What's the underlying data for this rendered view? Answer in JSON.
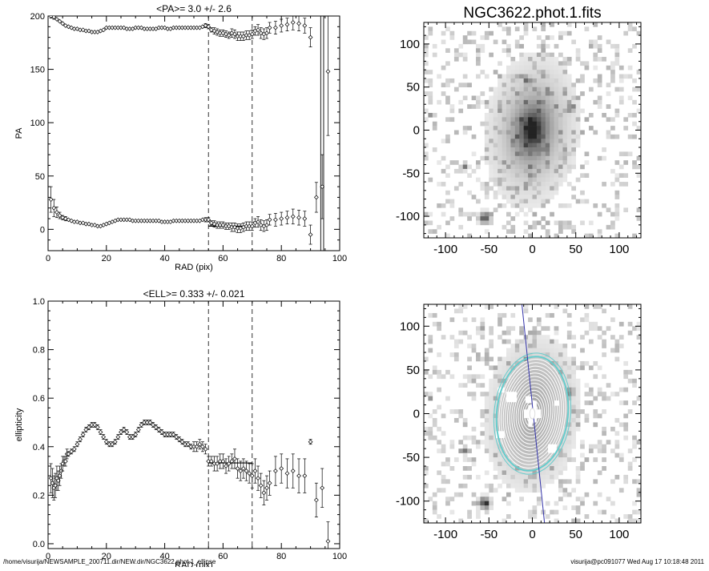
{
  "chart_data": [
    {
      "type": "scatter",
      "title": "<PA>=   3.0 +/-   2.6",
      "xlabel": "RAD (pix)",
      "ylabel": "PA",
      "xlim": [
        0,
        100
      ],
      "ylim": [
        -20,
        200
      ],
      "xticks": [
        "0",
        "20",
        "40",
        "60",
        "80",
        "100"
      ],
      "yticks": [
        "0",
        "50",
        "100",
        "150",
        "200"
      ],
      "vlines_dashed": [
        55,
        70
      ],
      "vlines_solid": [
        93.5,
        94.5
      ],
      "mean_line": {
        "x": [
          55,
          70
        ],
        "y": 3.0
      },
      "series": [
        {
          "branch": "upper",
          "x": [
            1,
            2,
            3,
            4,
            5,
            6,
            7,
            8,
            9,
            10,
            11,
            12,
            13,
            14,
            15,
            16,
            17,
            18,
            19,
            20,
            21,
            22,
            23,
            24,
            25,
            26,
            27,
            28,
            29,
            30,
            31,
            32,
            33,
            34,
            35,
            36,
            37,
            38,
            39,
            40,
            41,
            42,
            43,
            44,
            45,
            46,
            47,
            48,
            49,
            50,
            51,
            52,
            53,
            54,
            55,
            56,
            57,
            58,
            59,
            60,
            61,
            62,
            63,
            64,
            65,
            66,
            67,
            68,
            69,
            70,
            71,
            72,
            73,
            74,
            75,
            76,
            78,
            80,
            82,
            84,
            86,
            88,
            90
          ],
          "y": [
            200,
            199,
            197,
            195,
            193,
            191,
            190,
            189,
            188,
            188,
            187,
            187,
            186,
            186,
            185,
            185,
            185,
            186,
            187,
            189,
            189,
            189,
            189,
            189,
            189,
            189,
            188,
            188,
            188,
            189,
            189,
            189,
            188,
            188,
            188,
            188,
            188,
            189,
            189,
            189,
            188,
            188,
            189,
            189,
            189,
            189,
            189,
            189,
            189,
            189,
            189,
            189,
            190,
            191,
            190,
            187,
            186,
            185,
            184,
            184,
            183,
            182,
            184,
            183,
            181,
            181,
            181,
            182,
            182,
            183,
            186,
            187,
            184,
            183,
            184,
            189,
            189,
            191,
            192,
            194,
            193,
            191,
            180
          ],
          "yerr": [
            2,
            2,
            1,
            1,
            1,
            1,
            1,
            1,
            1,
            1,
            1,
            1,
            1,
            1,
            1,
            1,
            1,
            1,
            1,
            1,
            1,
            1,
            1,
            1,
            1,
            1,
            1,
            1,
            1,
            1,
            1,
            1,
            1,
            1,
            1,
            1,
            1,
            1,
            1,
            1,
            1,
            1,
            1,
            1,
            1,
            1,
            1,
            1,
            1,
            1,
            1,
            1,
            1,
            2,
            2,
            2,
            3,
            3,
            3,
            3,
            3,
            3,
            4,
            4,
            4,
            4,
            4,
            4,
            4,
            4,
            4,
            5,
            5,
            5,
            5,
            5,
            6,
            6,
            6,
            7,
            7,
            7,
            9
          ]
        },
        {
          "branch": "lower",
          "x": [
            1,
            2,
            3,
            4,
            5,
            6,
            7,
            8,
            9,
            10,
            11,
            12,
            13,
            14,
            15,
            16,
            17,
            18,
            19,
            20,
            21,
            22,
            23,
            24,
            25,
            26,
            27,
            28,
            29,
            30,
            31,
            32,
            33,
            34,
            35,
            36,
            37,
            38,
            39,
            40,
            41,
            42,
            43,
            44,
            45,
            46,
            47,
            48,
            49,
            50,
            51,
            52,
            53,
            54,
            55,
            56,
            57,
            58,
            59,
            60,
            61,
            62,
            63,
            64,
            65,
            66,
            67,
            68,
            69,
            70,
            71,
            72,
            73,
            74,
            75,
            76,
            78,
            80,
            82,
            84,
            86,
            88,
            90,
            92,
            94,
            96
          ],
          "y": [
            28,
            20,
            16,
            13,
            11,
            10,
            9,
            8,
            7,
            7,
            6,
            6,
            5,
            5,
            4,
            4,
            3,
            3,
            4,
            5,
            6,
            7,
            8,
            9,
            9,
            9,
            9,
            9,
            8,
            8,
            8,
            8,
            8,
            8,
            8,
            8,
            8,
            8,
            7,
            7,
            7,
            7,
            8,
            8,
            8,
            8,
            8,
            8,
            8,
            8,
            8,
            8,
            9,
            9,
            9,
            6,
            5,
            4,
            4,
            4,
            3,
            3,
            2,
            2,
            1,
            1,
            2,
            3,
            3,
            3,
            6,
            7,
            4,
            3,
            4,
            9,
            9,
            10,
            11,
            12,
            11,
            10,
            -5,
            30,
            40,
            148
          ],
          "yerr": [
            12,
            8,
            5,
            3,
            2,
            2,
            1,
            1,
            1,
            1,
            1,
            1,
            1,
            1,
            1,
            1,
            1,
            1,
            1,
            1,
            1,
            1,
            1,
            1,
            1,
            1,
            1,
            1,
            1,
            1,
            1,
            1,
            1,
            1,
            1,
            1,
            1,
            1,
            1,
            1,
            1,
            1,
            1,
            1,
            1,
            1,
            1,
            1,
            1,
            1,
            1,
            1,
            1,
            2,
            2,
            2,
            3,
            3,
            3,
            3,
            3,
            3,
            4,
            4,
            4,
            4,
            4,
            4,
            4,
            4,
            4,
            5,
            5,
            5,
            5,
            5,
            6,
            6,
            6,
            7,
            7,
            7,
            9,
            14,
            30,
            60
          ]
        }
      ]
    },
    {
      "type": "scatter",
      "title": "<ELL>= 0.333 +/-  0.021",
      "xlabel": "RAD (pix)",
      "ylabel": "ellipticity",
      "xlim": [
        0,
        100
      ],
      "ylim": [
        -0.02,
        1.0
      ],
      "xticks": [
        "0",
        "20",
        "40",
        "60",
        "80",
        "100"
      ],
      "yticks": [
        "0.0",
        "0.2",
        "0.4",
        "0.6",
        "0.8",
        "1.0"
      ],
      "vlines_dashed": [
        55,
        70
      ],
      "mean_line": {
        "x": [
          55,
          70
        ],
        "y": 0.333
      },
      "series": [
        {
          "x": [
            1,
            1.5,
            2,
            2.5,
            3,
            3.5,
            4,
            4.5,
            5,
            5.5,
            6,
            6.5,
            7,
            8,
            9,
            10,
            11,
            12,
            13,
            14,
            15,
            16,
            17,
            18,
            19,
            20,
            21,
            22,
            23,
            24,
            25,
            26,
            27,
            28,
            29,
            30,
            31,
            32,
            33,
            34,
            35,
            36,
            37,
            38,
            39,
            40,
            41,
            42,
            43,
            44,
            45,
            46,
            47,
            48,
            49,
            50,
            51,
            52,
            53,
            54,
            55,
            56,
            57,
            58,
            59,
            60,
            61,
            62,
            63,
            64,
            65,
            66,
            67,
            68,
            69,
            70,
            71,
            72,
            73,
            74,
            75,
            76,
            78,
            80,
            82,
            84,
            86,
            88,
            90,
            92,
            94,
            96
          ],
          "y": [
            0.27,
            0.25,
            0.23,
            0.24,
            0.27,
            0.26,
            0.28,
            0.3,
            0.33,
            0.34,
            0.34,
            0.37,
            0.37,
            0.38,
            0.39,
            0.41,
            0.43,
            0.45,
            0.47,
            0.48,
            0.49,
            0.49,
            0.48,
            0.46,
            0.44,
            0.42,
            0.41,
            0.41,
            0.42,
            0.44,
            0.46,
            0.47,
            0.46,
            0.44,
            0.44,
            0.45,
            0.47,
            0.49,
            0.5,
            0.5,
            0.5,
            0.49,
            0.48,
            0.47,
            0.46,
            0.45,
            0.45,
            0.45,
            0.45,
            0.44,
            0.43,
            0.42,
            0.41,
            0.41,
            0.4,
            0.4,
            0.4,
            0.41,
            0.4,
            0.39,
            0.34,
            0.34,
            0.33,
            0.33,
            0.34,
            0.34,
            0.32,
            0.33,
            0.34,
            0.35,
            0.31,
            0.3,
            0.31,
            0.3,
            0.29,
            0.28,
            0.3,
            0.27,
            0.24,
            0.21,
            0.23,
            0.25,
            0.3,
            0.31,
            0.29,
            0.3,
            0.28,
            0.28,
            0.42,
            0.18,
            0.23,
            0.01
          ],
          "yerr": [
            0.06,
            0.06,
            0.05,
            0.05,
            0.05,
            0.04,
            0.04,
            0.03,
            0.03,
            0.02,
            0.02,
            0.02,
            0.01,
            0.01,
            0.01,
            0.01,
            0.01,
            0.01,
            0.01,
            0.01,
            0.01,
            0.01,
            0.01,
            0.01,
            0.01,
            0.01,
            0.01,
            0.01,
            0.01,
            0.01,
            0.01,
            0.01,
            0.01,
            0.01,
            0.01,
            0.01,
            0.01,
            0.01,
            0.01,
            0.01,
            0.01,
            0.01,
            0.01,
            0.01,
            0.01,
            0.01,
            0.01,
            0.01,
            0.01,
            0.01,
            0.01,
            0.01,
            0.01,
            0.01,
            0.01,
            0.02,
            0.02,
            0.02,
            0.02,
            0.02,
            0.02,
            0.02,
            0.03,
            0.03,
            0.03,
            0.03,
            0.03,
            0.03,
            0.03,
            0.04,
            0.04,
            0.04,
            0.04,
            0.04,
            0.04,
            0.05,
            0.05,
            0.05,
            0.05,
            0.05,
            0.05,
            0.05,
            0.06,
            0.06,
            0.06,
            0.07,
            0.07,
            0.07,
            0.01,
            0.07,
            0.08,
            0.08
          ]
        }
      ]
    },
    {
      "type": "heatmap",
      "title": "NGC3622.phot.1.fits",
      "xlim": [
        -125,
        125
      ],
      "ylim": [
        -125,
        125
      ],
      "xticks": [
        "-100",
        "-50",
        "0",
        "50",
        "100"
      ],
      "yticks": [
        "-100",
        "-50",
        "0",
        "50",
        "100"
      ],
      "colormap": "grayscale-inverted"
    },
    {
      "type": "heatmap",
      "title": "",
      "xlim": [
        -125,
        125
      ],
      "ylim": [
        -125,
        125
      ],
      "xticks": [
        "-100",
        "-50",
        "0",
        "50",
        "100"
      ],
      "yticks": [
        "-100",
        "-50",
        "0",
        "50",
        "100"
      ],
      "overlay": "isophote contours with fitted ellipse",
      "contour_color": "#ffffff",
      "ellipse_color": "#66cccc",
      "major_axis_color": "#3333aa"
    }
  ],
  "footer": {
    "left": "/home/visurija/NEWSAMPLE_200711.dir/NEW.dir/NGC3622.phot.1_ellipse",
    "right": "visurija@pc091077  Wed Aug 17 10:18:48 2011"
  }
}
